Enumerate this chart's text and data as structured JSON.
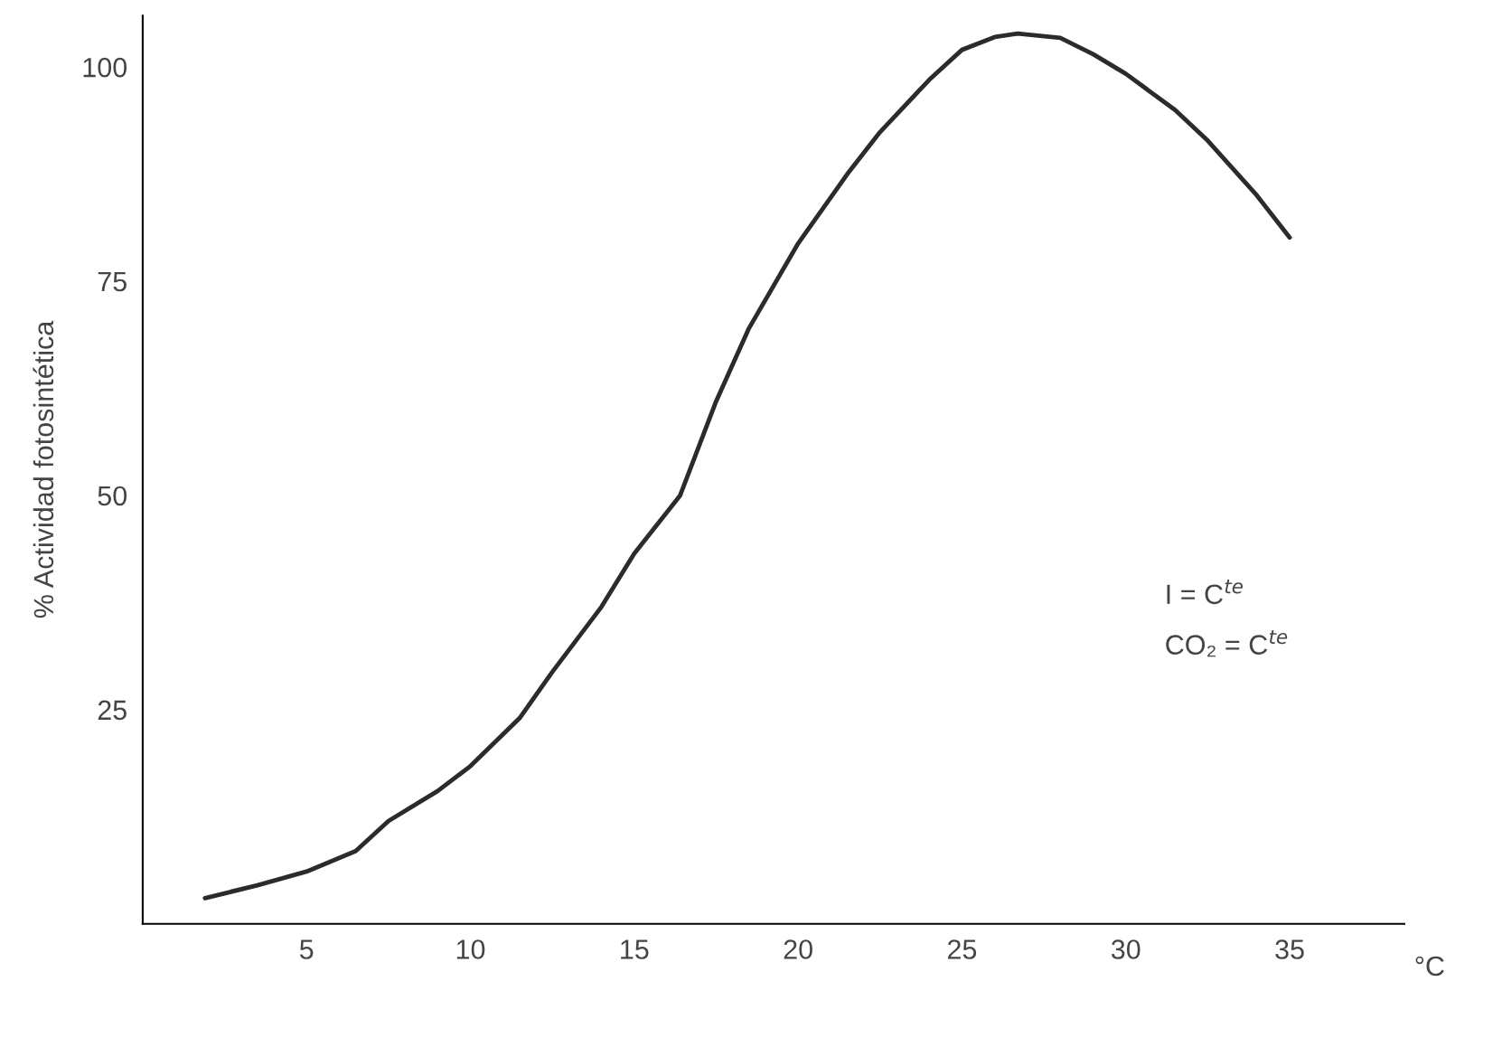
{
  "chart_data": {
    "type": "line",
    "ylabel": "% Actividad fotosintética",
    "xlabel": "°C",
    "x": [
      1.9,
      3.5,
      5,
      6.5,
      7.5,
      9,
      10,
      11.5,
      12.5,
      14,
      15,
      16.4,
      17.5,
      18.5,
      20,
      21.5,
      22.5,
      24,
      25,
      26,
      26.7,
      28,
      29,
      30,
      31.5,
      32.5,
      34,
      35
    ],
    "series": [
      {
        "color": "#2b2b2b",
        "values": [
          3.0,
          4.5,
          6.1,
          8.5,
          12,
          15.5,
          18.4,
          24,
          29.4,
          37,
          43.2,
          50,
          61,
          69.5,
          79.4,
          87.5,
          92.4,
          98.5,
          102,
          103.5,
          103.9,
          103.4,
          101.5,
          99.2,
          95,
          91.4,
          85,
          80.1
        ]
      }
    ],
    "xlim": [
      0,
      38.5
    ],
    "ylim": [
      0,
      106
    ],
    "xticks": [
      5,
      10,
      15,
      20,
      25,
      30,
      35
    ],
    "yticks": [
      25,
      50,
      75,
      100
    ],
    "annotations": [
      "I = C$^{te}$",
      "CO₂ = C$^{te}$"
    ],
    "grid": false,
    "legend": false,
    "marker": "none",
    "line_style": "solid"
  }
}
